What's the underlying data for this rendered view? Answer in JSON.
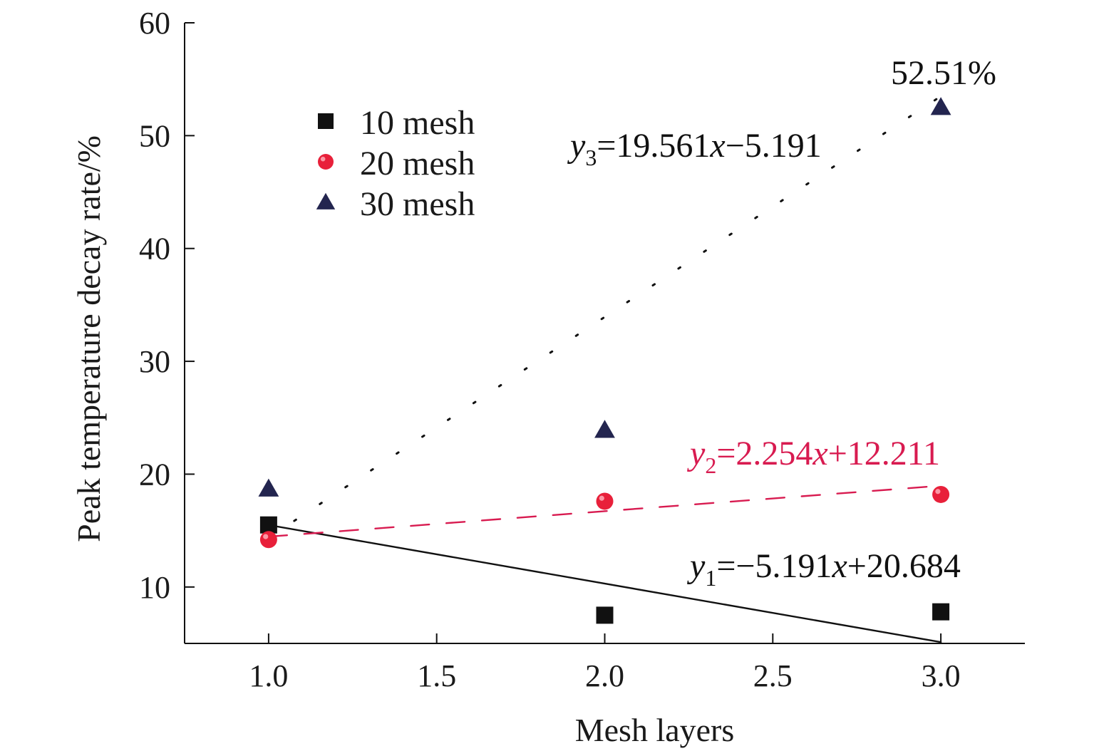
{
  "chart_data": {
    "type": "scatter",
    "title": "",
    "xlabel": "Mesh layers",
    "ylabel": "Peak temperature decay rate/%",
    "xlim": [
      0.75,
      3.25
    ],
    "ylim": [
      5,
      60
    ],
    "xticks": [
      1.0,
      1.5,
      2.0,
      2.5,
      3.0
    ],
    "xtick_labels": [
      "1.0",
      "1.5",
      "2.0",
      "2.5",
      "3.0"
    ],
    "yticks": [
      10,
      20,
      30,
      40,
      50,
      60
    ],
    "ytick_labels": [
      "10",
      "20",
      "30",
      "40",
      "50",
      "60"
    ],
    "grid": false,
    "legend": {
      "position": "top-left"
    },
    "series": [
      {
        "name": "10 mesh",
        "marker": "square",
        "color": "#111111",
        "x": [
          1,
          2,
          3
        ],
        "y": [
          15.5,
          7.5,
          7.8
        ],
        "fit": {
          "slope": -5.191,
          "intercept": 20.684,
          "style": "solid",
          "color": "#111111"
        }
      },
      {
        "name": "20 mesh",
        "marker": "circle",
        "color": "#e8203a",
        "x": [
          1,
          2,
          3
        ],
        "y": [
          14.2,
          17.6,
          18.2
        ],
        "fit": {
          "slope": 2.254,
          "intercept": 12.211,
          "style": "dashed",
          "color": "#d81b50"
        }
      },
      {
        "name": "30 mesh",
        "marker": "triangle",
        "color": "#23254f",
        "x": [
          1,
          2,
          3
        ],
        "y": [
          18.7,
          23.9,
          52.51
        ],
        "fit": {
          "slope": 19.561,
          "intercept": -5.191,
          "style": "dotted",
          "color": "#111111"
        }
      }
    ],
    "annotations": [
      {
        "id": "eq1",
        "italic": "y",
        "sub": "1",
        "rest": "=−5.191",
        "var": "x",
        "tail": "+20.684",
        "color": "#111111"
      },
      {
        "id": "eq2",
        "italic": "y",
        "sub": "2",
        "rest": "=2.254",
        "var": "x",
        "tail": "+12.211",
        "color": "#d81b50"
      },
      {
        "id": "eq3",
        "italic": "y",
        "sub": "3",
        "rest": "=19.561",
        "var": "x",
        "tail": "−5.191",
        "color": "#111111"
      },
      {
        "id": "peak",
        "text": "52.51%",
        "color": "#111111"
      }
    ]
  }
}
